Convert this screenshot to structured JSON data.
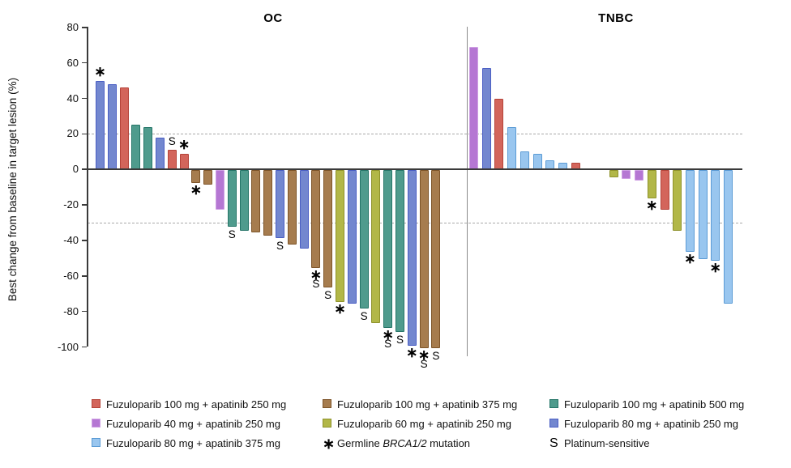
{
  "chart_data": {
    "type": "bar",
    "subtype": "waterfall",
    "ylabel": "Best change from baseline in target lesion (%)",
    "ylim": [
      -100,
      80
    ],
    "yticks": [
      80,
      60,
      40,
      20,
      0,
      -20,
      -40,
      -60,
      -80,
      -100
    ],
    "reference_lines": [
      20,
      -30
    ],
    "grid": "off",
    "groups": [
      {
        "id": "g_r",
        "label": "Fuzuloparib 100 mg + apatinib 250 mg",
        "fill": "#D3655B",
        "border": "#B44339"
      },
      {
        "id": "g_p40",
        "label": "Fuzuloparib 40 mg + apatinib 250 mg",
        "fill": "#B577D3",
        "border": "#CFA0E4"
      },
      {
        "id": "g_lb80",
        "label": "Fuzuloparib 80 mg + apatinib 375 mg",
        "fill": "#99C6EF",
        "border": "#5B9BD5"
      },
      {
        "id": "g_b375",
        "label": "Fuzuloparib 100 mg + apatinib 375 mg",
        "fill": "#A67C4E",
        "border": "#7D5428"
      },
      {
        "id": "g_y60",
        "label": "Fuzuloparib 60 mg + apatinib 250 mg",
        "fill": "#B2B748",
        "border": "#8E922B"
      },
      {
        "id": "g_t500",
        "label": "Fuzuloparib 100 mg + apatinib 500 mg",
        "fill": "#4F9B8D",
        "border": "#257568"
      },
      {
        "id": "g_bl80",
        "label": "Fuzuloparib 80 mg + apatinib 250 mg",
        "fill": "#7387CF",
        "border": "#4A5EC4"
      }
    ],
    "marker_definitions": {
      "*": "Germline BRCA1/2 mutation",
      "S": "Platinum-sensitive"
    },
    "panels": [
      {
        "title": "OC",
        "bars": [
          {
            "value": 50,
            "group": "g_bl80",
            "markers": [
              "*"
            ]
          },
          {
            "value": 48,
            "group": "g_bl80",
            "markers": []
          },
          {
            "value": 46,
            "group": "g_r",
            "markers": []
          },
          {
            "value": 25,
            "group": "g_t500",
            "markers": []
          },
          {
            "value": 24,
            "group": "g_t500",
            "markers": []
          },
          {
            "value": 18,
            "group": "g_bl80",
            "markers": []
          },
          {
            "value": 11,
            "group": "g_r",
            "markers": [
              "S"
            ]
          },
          {
            "value": 9,
            "group": "g_r",
            "markers": [
              "*"
            ]
          },
          {
            "value": -7,
            "group": "g_b375",
            "markers": [
              "*"
            ]
          },
          {
            "value": -8,
            "group": "g_b375",
            "markers": []
          },
          {
            "value": -22,
            "group": "g_p40",
            "markers": []
          },
          {
            "value": -32,
            "group": "g_t500",
            "markers": [
              "S"
            ]
          },
          {
            "value": -34,
            "group": "g_t500",
            "markers": []
          },
          {
            "value": -35,
            "group": "g_b375",
            "markers": []
          },
          {
            "value": -37,
            "group": "g_b375",
            "markers": []
          },
          {
            "value": -38,
            "group": "g_bl80",
            "markers": [
              "S"
            ]
          },
          {
            "value": -42,
            "group": "g_b375",
            "markers": []
          },
          {
            "value": -44,
            "group": "g_bl80",
            "markers": []
          },
          {
            "value": -55,
            "group": "g_b375",
            "markers": [
              "*",
              "S"
            ]
          },
          {
            "value": -66,
            "group": "g_b375",
            "markers": [
              "S"
            ]
          },
          {
            "value": -74,
            "group": "g_y60",
            "markers": [
              "*"
            ]
          },
          {
            "value": -75,
            "group": "g_bl80",
            "markers": []
          },
          {
            "value": -78,
            "group": "g_t500",
            "markers": [
              "S"
            ]
          },
          {
            "value": -86,
            "group": "g_y60",
            "markers": []
          },
          {
            "value": -89,
            "group": "g_t500",
            "markers": [
              "*",
              "S"
            ]
          },
          {
            "value": -91,
            "group": "g_t500",
            "markers": [
              "S"
            ]
          },
          {
            "value": -99,
            "group": "g_bl80",
            "markers": [
              "*"
            ]
          },
          {
            "value": -100,
            "group": "g_b375",
            "markers": [
              "*",
              "S"
            ]
          },
          {
            "value": -100,
            "group": "g_b375",
            "markers": [
              "S"
            ]
          }
        ]
      },
      {
        "title": "TNBC",
        "bars": [
          {
            "value": 69,
            "group": "g_p40",
            "markers": []
          },
          {
            "value": 57,
            "group": "g_bl80",
            "markers": []
          },
          {
            "value": 40,
            "group": "g_r",
            "markers": []
          },
          {
            "value": 24,
            "group": "g_lb80",
            "markers": []
          },
          {
            "value": 10,
            "group": "g_lb80",
            "markers": []
          },
          {
            "value": 9,
            "group": "g_lb80",
            "markers": []
          },
          {
            "value": 5,
            "group": "g_lb80",
            "markers": []
          },
          {
            "value": 4,
            "group": "g_lb80",
            "markers": []
          },
          {
            "value": 4,
            "group": "g_r",
            "markers": []
          },
          {
            "value": 0,
            "group": null,
            "markers": []
          },
          {
            "value": 0,
            "group": null,
            "markers": []
          },
          {
            "value": -4,
            "group": "g_y60",
            "markers": []
          },
          {
            "value": -5,
            "group": "g_p40",
            "markers": []
          },
          {
            "value": -6,
            "group": "g_p40",
            "markers": []
          },
          {
            "value": -16,
            "group": "g_y60",
            "markers": [
              "*"
            ]
          },
          {
            "value": -22,
            "group": "g_r",
            "markers": []
          },
          {
            "value": -34,
            "group": "g_y60",
            "markers": []
          },
          {
            "value": -46,
            "group": "g_lb80",
            "markers": [
              "*"
            ]
          },
          {
            "value": -50,
            "group": "g_lb80",
            "markers": []
          },
          {
            "value": -51,
            "group": "g_lb80",
            "markers": [
              "*"
            ]
          },
          {
            "value": -75,
            "group": "g_lb80",
            "markers": []
          }
        ]
      }
    ]
  },
  "legend": {
    "columns": [
      {
        "items": [
          {
            "type": "swatch",
            "group": "g_r"
          },
          {
            "type": "swatch",
            "group": "g_p40"
          },
          {
            "type": "swatch",
            "group": "g_lb80"
          }
        ]
      },
      {
        "items": [
          {
            "type": "swatch",
            "group": "g_b375"
          },
          {
            "type": "swatch",
            "group": "g_y60"
          },
          {
            "type": "symbol",
            "symbol": "*",
            "label_prefix": "Germline ",
            "label_italic": "BRCA1/2",
            "label_suffix": " mutation"
          }
        ]
      },
      {
        "items": [
          {
            "type": "swatch",
            "group": "g_t500"
          },
          {
            "type": "swatch",
            "group": "g_bl80"
          },
          {
            "type": "symbol",
            "symbol": "S",
            "label": "Platinum-sensitive"
          }
        ]
      }
    ]
  }
}
